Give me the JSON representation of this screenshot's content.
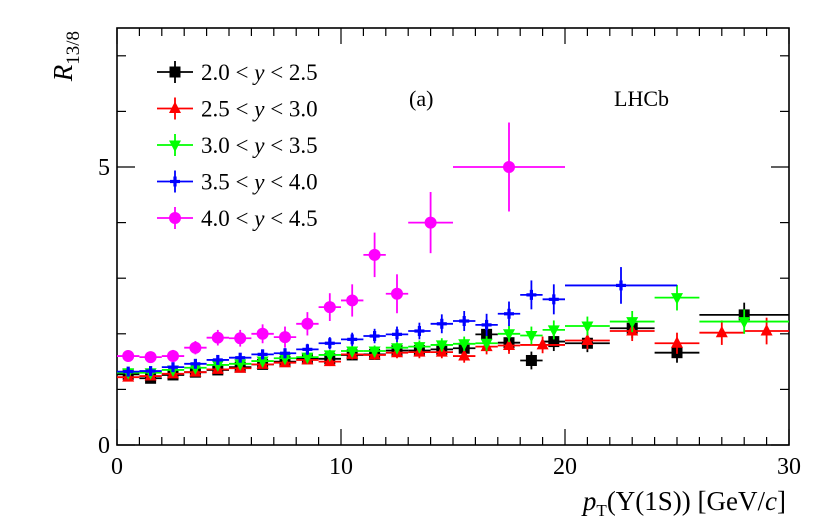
{
  "chart_data": {
    "type": "scatter",
    "title": "",
    "xlabel": "p_T(Υ(1S)) [GeV/c]",
    "xlabel_parts": {
      "main": "p",
      "sub": "T",
      "rest": "(Υ(1S)) [GeV/",
      "unit": "c",
      "close": "]"
    },
    "ylabel": "R_13/8",
    "ylabel_parts": {
      "main": "R",
      "sub": "13/8"
    },
    "xlim": [
      0,
      30
    ],
    "ylim": [
      0,
      7.5
    ],
    "xticks": [
      0,
      10,
      20,
      30
    ],
    "xtick_labels": [
      "0",
      "10",
      "20",
      "30"
    ],
    "yticks": [
      0,
      5
    ],
    "ytick_labels": [
      "0",
      "5"
    ],
    "annotations": [
      "(a)",
      "LHCb"
    ],
    "series": [
      {
        "name": "2.0 < y < 2.5",
        "name_parts": [
          "2.0 <",
          "y",
          "< 2.5"
        ],
        "color": "#000000",
        "marker": "square",
        "points": [
          {
            "x": 0.5,
            "xerr": 0.5,
            "y": 1.27,
            "yerr": 0.06
          },
          {
            "x": 1.5,
            "xerr": 0.5,
            "y": 1.2,
            "yerr": 0.06
          },
          {
            "x": 2.5,
            "xerr": 0.5,
            "y": 1.26,
            "yerr": 0.06
          },
          {
            "x": 3.5,
            "xerr": 0.5,
            "y": 1.31,
            "yerr": 0.06
          },
          {
            "x": 4.5,
            "xerr": 0.5,
            "y": 1.35,
            "yerr": 0.06
          },
          {
            "x": 5.5,
            "xerr": 0.5,
            "y": 1.4,
            "yerr": 0.06
          },
          {
            "x": 6.5,
            "xerr": 0.5,
            "y": 1.45,
            "yerr": 0.07
          },
          {
            "x": 7.5,
            "xerr": 0.5,
            "y": 1.5,
            "yerr": 0.07
          },
          {
            "x": 8.5,
            "xerr": 0.5,
            "y": 1.55,
            "yerr": 0.07
          },
          {
            "x": 9.5,
            "xerr": 0.5,
            "y": 1.55,
            "yerr": 0.08
          },
          {
            "x": 10.5,
            "xerr": 0.5,
            "y": 1.62,
            "yerr": 0.08
          },
          {
            "x": 11.5,
            "xerr": 0.5,
            "y": 1.63,
            "yerr": 0.09
          },
          {
            "x": 12.5,
            "xerr": 0.5,
            "y": 1.7,
            "yerr": 0.09
          },
          {
            "x": 13.5,
            "xerr": 0.5,
            "y": 1.7,
            "yerr": 0.1
          },
          {
            "x": 14.5,
            "xerr": 0.5,
            "y": 1.72,
            "yerr": 0.11
          },
          {
            "x": 15.5,
            "xerr": 0.5,
            "y": 1.74,
            "yerr": 0.12
          },
          {
            "x": 16.5,
            "xerr": 0.5,
            "y": 1.99,
            "yerr": 0.13
          },
          {
            "x": 17.5,
            "xerr": 0.5,
            "y": 1.84,
            "yerr": 0.15
          },
          {
            "x": 18.5,
            "xerr": 0.5,
            "y": 1.52,
            "yerr": 0.16
          },
          {
            "x": 19.5,
            "xerr": 0.5,
            "y": 1.86,
            "yerr": 0.17
          },
          {
            "x": 21.0,
            "xerr": 1.0,
            "y": 1.83,
            "yerr": 0.16
          },
          {
            "x": 23.0,
            "xerr": 1.0,
            "y": 2.1,
            "yerr": 0.18
          },
          {
            "x": 25.0,
            "xerr": 1.0,
            "y": 1.66,
            "yerr": 0.18
          },
          {
            "x": 28.0,
            "xerr": 2.0,
            "y": 2.34,
            "yerr": 0.22
          }
        ]
      },
      {
        "name": "2.5 < y < 3.0",
        "name_parts": [
          "2.5 <",
          "y",
          "< 3.0"
        ],
        "color": "#ff0000",
        "marker": "triangle-up",
        "points": [
          {
            "x": 0.5,
            "xerr": 0.5,
            "y": 1.22,
            "yerr": 0.06
          },
          {
            "x": 1.5,
            "xerr": 0.5,
            "y": 1.24,
            "yerr": 0.06
          },
          {
            "x": 2.5,
            "xerr": 0.5,
            "y": 1.28,
            "yerr": 0.06
          },
          {
            "x": 3.5,
            "xerr": 0.5,
            "y": 1.31,
            "yerr": 0.06
          },
          {
            "x": 4.5,
            "xerr": 0.5,
            "y": 1.36,
            "yerr": 0.06
          },
          {
            "x": 5.5,
            "xerr": 0.5,
            "y": 1.38,
            "yerr": 0.07
          },
          {
            "x": 6.5,
            "xerr": 0.5,
            "y": 1.45,
            "yerr": 0.07
          },
          {
            "x": 7.5,
            "xerr": 0.5,
            "y": 1.48,
            "yerr": 0.07
          },
          {
            "x": 8.5,
            "xerr": 0.5,
            "y": 1.53,
            "yerr": 0.08
          },
          {
            "x": 9.5,
            "xerr": 0.5,
            "y": 1.5,
            "yerr": 0.08
          },
          {
            "x": 10.5,
            "xerr": 0.5,
            "y": 1.63,
            "yerr": 0.09
          },
          {
            "x": 11.5,
            "xerr": 0.5,
            "y": 1.62,
            "yerr": 0.09
          },
          {
            "x": 12.5,
            "xerr": 0.5,
            "y": 1.66,
            "yerr": 0.1
          },
          {
            "x": 13.5,
            "xerr": 0.5,
            "y": 1.67,
            "yerr": 0.11
          },
          {
            "x": 14.5,
            "xerr": 0.5,
            "y": 1.67,
            "yerr": 0.11
          },
          {
            "x": 15.5,
            "xerr": 0.5,
            "y": 1.6,
            "yerr": 0.12
          },
          {
            "x": 16.5,
            "xerr": 0.5,
            "y": 1.77,
            "yerr": 0.14
          },
          {
            "x": 17.5,
            "xerr": 0.5,
            "y": 1.79,
            "yerr": 0.15
          },
          {
            "x": 19.0,
            "xerr": 1.0,
            "y": 1.8,
            "yerr": 0.15
          },
          {
            "x": 21.0,
            "xerr": 1.0,
            "y": 1.88,
            "yerr": 0.16
          },
          {
            "x": 23.0,
            "xerr": 1.0,
            "y": 2.05,
            "yerr": 0.18
          },
          {
            "x": 25.0,
            "xerr": 1.0,
            "y": 1.83,
            "yerr": 0.19
          },
          {
            "x": 27.0,
            "xerr": 1.0,
            "y": 2.02,
            "yerr": 0.22
          },
          {
            "x": 29.0,
            "xerr": 1.0,
            "y": 2.05,
            "yerr": 0.24
          }
        ]
      },
      {
        "name": "3.0 < y < 3.5",
        "name_parts": [
          "3.0 <",
          "y",
          "< 3.5"
        ],
        "color": "#00ff00",
        "marker": "triangle-down",
        "points": [
          {
            "x": 0.5,
            "xerr": 0.5,
            "y": 1.3,
            "yerr": 0.06
          },
          {
            "x": 1.5,
            "xerr": 0.5,
            "y": 1.3,
            "yerr": 0.06
          },
          {
            "x": 2.5,
            "xerr": 0.5,
            "y": 1.35,
            "yerr": 0.06
          },
          {
            "x": 3.5,
            "xerr": 0.5,
            "y": 1.39,
            "yerr": 0.06
          },
          {
            "x": 4.5,
            "xerr": 0.5,
            "y": 1.44,
            "yerr": 0.07
          },
          {
            "x": 5.5,
            "xerr": 0.5,
            "y": 1.46,
            "yerr": 0.07
          },
          {
            "x": 6.5,
            "xerr": 0.5,
            "y": 1.51,
            "yerr": 0.07
          },
          {
            "x": 7.5,
            "xerr": 0.5,
            "y": 1.56,
            "yerr": 0.08
          },
          {
            "x": 8.5,
            "xerr": 0.5,
            "y": 1.58,
            "yerr": 0.08
          },
          {
            "x": 9.5,
            "xerr": 0.5,
            "y": 1.62,
            "yerr": 0.09
          },
          {
            "x": 10.5,
            "xerr": 0.5,
            "y": 1.69,
            "yerr": 0.09
          },
          {
            "x": 11.5,
            "xerr": 0.5,
            "y": 1.69,
            "yerr": 0.1
          },
          {
            "x": 12.5,
            "xerr": 0.5,
            "y": 1.75,
            "yerr": 0.1
          },
          {
            "x": 13.5,
            "xerr": 0.5,
            "y": 1.77,
            "yerr": 0.11
          },
          {
            "x": 14.5,
            "xerr": 0.5,
            "y": 1.8,
            "yerr": 0.12
          },
          {
            "x": 15.5,
            "xerr": 0.5,
            "y": 1.82,
            "yerr": 0.13
          },
          {
            "x": 16.5,
            "xerr": 0.5,
            "y": 1.83,
            "yerr": 0.14
          },
          {
            "x": 17.5,
            "xerr": 0.5,
            "y": 2.0,
            "yerr": 0.15
          },
          {
            "x": 18.5,
            "xerr": 0.5,
            "y": 1.97,
            "yerr": 0.16
          },
          {
            "x": 19.5,
            "xerr": 0.5,
            "y": 2.07,
            "yerr": 0.17
          },
          {
            "x": 21.0,
            "xerr": 1.0,
            "y": 2.14,
            "yerr": 0.17
          },
          {
            "x": 23.0,
            "xerr": 1.0,
            "y": 2.22,
            "yerr": 0.19
          },
          {
            "x": 25.0,
            "xerr": 1.0,
            "y": 2.65,
            "yerr": 0.23
          },
          {
            "x": 28.0,
            "xerr": 2.0,
            "y": 2.22,
            "yerr": 0.22
          }
        ]
      },
      {
        "name": "3.5 < y < 4.0",
        "name_parts": [
          "3.5 <",
          "y",
          "< 4.0"
        ],
        "color": "#0000ff",
        "marker": "cross",
        "points": [
          {
            "x": 0.5,
            "xerr": 0.5,
            "y": 1.32,
            "yerr": 0.07
          },
          {
            "x": 1.5,
            "xerr": 0.5,
            "y": 1.33,
            "yerr": 0.07
          },
          {
            "x": 2.5,
            "xerr": 0.5,
            "y": 1.4,
            "yerr": 0.07
          },
          {
            "x": 3.5,
            "xerr": 0.5,
            "y": 1.46,
            "yerr": 0.07
          },
          {
            "x": 4.5,
            "xerr": 0.5,
            "y": 1.53,
            "yerr": 0.08
          },
          {
            "x": 5.5,
            "xerr": 0.5,
            "y": 1.57,
            "yerr": 0.08
          },
          {
            "x": 6.5,
            "xerr": 0.5,
            "y": 1.63,
            "yerr": 0.09
          },
          {
            "x": 7.5,
            "xerr": 0.5,
            "y": 1.65,
            "yerr": 0.09
          },
          {
            "x": 8.5,
            "xerr": 0.5,
            "y": 1.72,
            "yerr": 0.1
          },
          {
            "x": 9.5,
            "xerr": 0.5,
            "y": 1.83,
            "yerr": 0.11
          },
          {
            "x": 10.5,
            "xerr": 0.5,
            "y": 1.9,
            "yerr": 0.12
          },
          {
            "x": 11.5,
            "xerr": 0.5,
            "y": 1.96,
            "yerr": 0.13
          },
          {
            "x": 12.5,
            "xerr": 0.5,
            "y": 1.99,
            "yerr": 0.14
          },
          {
            "x": 13.5,
            "xerr": 0.5,
            "y": 2.05,
            "yerr": 0.15
          },
          {
            "x": 14.5,
            "xerr": 0.5,
            "y": 2.18,
            "yerr": 0.17
          },
          {
            "x": 15.5,
            "xerr": 0.5,
            "y": 2.23,
            "yerr": 0.18
          },
          {
            "x": 16.5,
            "xerr": 0.5,
            "y": 2.16,
            "yerr": 0.2
          },
          {
            "x": 17.5,
            "xerr": 0.5,
            "y": 2.36,
            "yerr": 0.22
          },
          {
            "x": 18.5,
            "xerr": 0.5,
            "y": 2.7,
            "yerr": 0.26
          },
          {
            "x": 19.5,
            "xerr": 0.5,
            "y": 2.62,
            "yerr": 0.27
          },
          {
            "x": 22.5,
            "xerr": 2.5,
            "y": 2.87,
            "yerr": 0.33
          }
        ]
      },
      {
        "name": "4.0 < y < 4.5",
        "name_parts": [
          "4.0 <",
          "y",
          "< 4.5"
        ],
        "color": "#ff00ff",
        "marker": "circle",
        "points": [
          {
            "x": 0.5,
            "xerr": 0.5,
            "y": 1.6,
            "yerr": 0.1
          },
          {
            "x": 1.5,
            "xerr": 0.5,
            "y": 1.58,
            "yerr": 0.1
          },
          {
            "x": 2.5,
            "xerr": 0.5,
            "y": 1.6,
            "yerr": 0.11
          },
          {
            "x": 3.5,
            "xerr": 0.5,
            "y": 1.75,
            "yerr": 0.12
          },
          {
            "x": 4.5,
            "xerr": 0.5,
            "y": 1.93,
            "yerr": 0.14
          },
          {
            "x": 5.5,
            "xerr": 0.5,
            "y": 1.92,
            "yerr": 0.15
          },
          {
            "x": 6.5,
            "xerr": 0.5,
            "y": 2.0,
            "yerr": 0.17
          },
          {
            "x": 7.5,
            "xerr": 0.5,
            "y": 1.94,
            "yerr": 0.19
          },
          {
            "x": 8.5,
            "xerr": 0.5,
            "y": 2.18,
            "yerr": 0.21
          },
          {
            "x": 9.5,
            "xerr": 0.5,
            "y": 2.48,
            "yerr": 0.25
          },
          {
            "x": 10.5,
            "xerr": 0.5,
            "y": 2.6,
            "yerr": 0.29
          },
          {
            "x": 11.5,
            "xerr": 0.5,
            "y": 3.42,
            "yerr": 0.4
          },
          {
            "x": 12.5,
            "xerr": 0.5,
            "y": 2.72,
            "yerr": 0.35
          },
          {
            "x": 14.0,
            "xerr": 1.0,
            "y": 4.0,
            "yerr": 0.55
          },
          {
            "x": 17.5,
            "xerr": 2.5,
            "y": 5.0,
            "yerr": 0.8
          }
        ]
      }
    ]
  }
}
